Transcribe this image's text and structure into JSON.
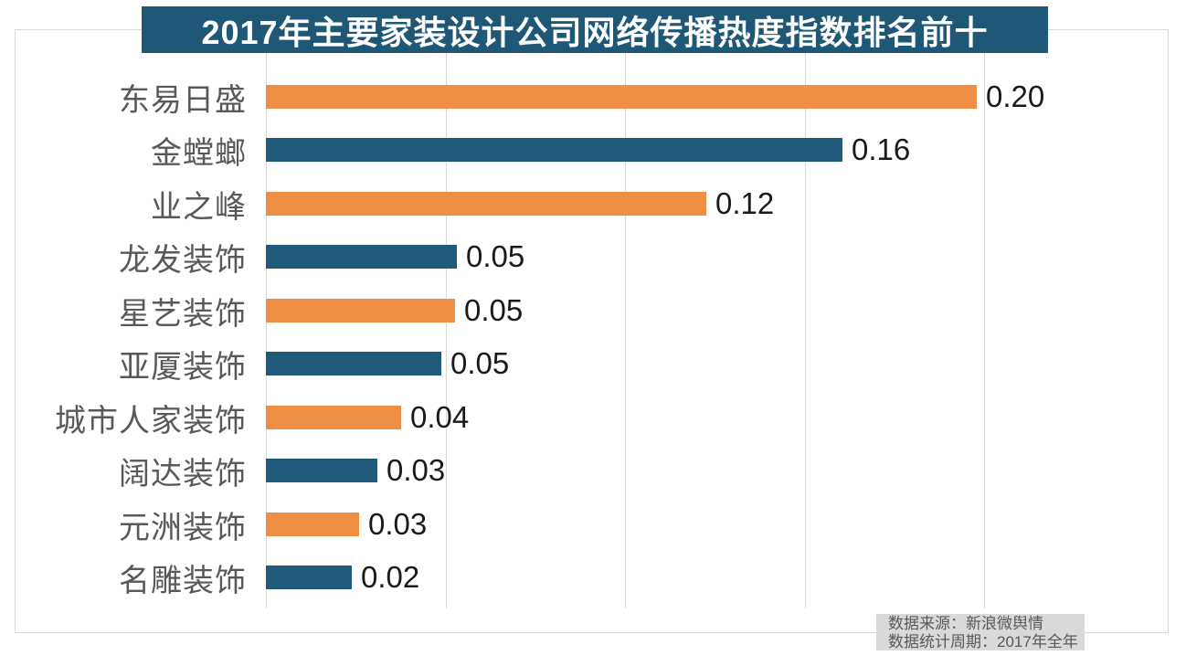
{
  "title": "2017年主要家装设计公司网络传播热度指数排名前十",
  "footer": {
    "source": "数据来源：新浪微舆情",
    "period": "数据统计周期：2017年全年"
  },
  "colors": {
    "background": "#FFFFFF",
    "banner_bg": "#1F5876",
    "bar_orange": "#EE8F45",
    "bar_teal": "#1F5A7A",
    "category_label": "#595959",
    "value_label": "#1A1A1A",
    "gridline": "#D9D9D9",
    "border": "#D9D9D9",
    "footer_bg": "#D9D9D9",
    "footer_text": "#595959"
  },
  "chart_data": {
    "type": "bar",
    "orientation": "horizontal",
    "title": "2017年主要家装设计公司网络传播热度指数排名前十",
    "categories": [
      "东易日盛",
      "金螳螂",
      "业之峰",
      "龙发装饰",
      "星艺装饰",
      "亚厦装饰",
      "城市人家装饰",
      "阔达装饰",
      "元洲装饰",
      "名雕装饰"
    ],
    "values": [
      0.2,
      0.16,
      0.12,
      0.05,
      0.05,
      0.05,
      0.04,
      0.03,
      0.03,
      0.02
    ],
    "value_labels": [
      "0.20",
      "0.16",
      "0.12",
      "0.05",
      "0.05",
      "0.05",
      "0.04",
      "0.03",
      "0.03",
      "0.02"
    ],
    "precise_values": [
      0.198,
      0.1605,
      0.1227,
      0.0532,
      0.0527,
      0.0489,
      0.0377,
      0.031,
      0.026,
      0.0239
    ],
    "bar_color_pattern": [
      "#EE8F45",
      "#1F5A7A"
    ],
    "xlabel": "",
    "ylabel": "",
    "xlim": [
      0,
      0.25
    ],
    "tick_interval": 0.05,
    "grid": "vertical gridlines, no tick labels",
    "legend": "none",
    "value_labels_position": "end of bar",
    "source": "数据来源：新浪微舆情",
    "period": "数据统计周期：2017年全年"
  }
}
